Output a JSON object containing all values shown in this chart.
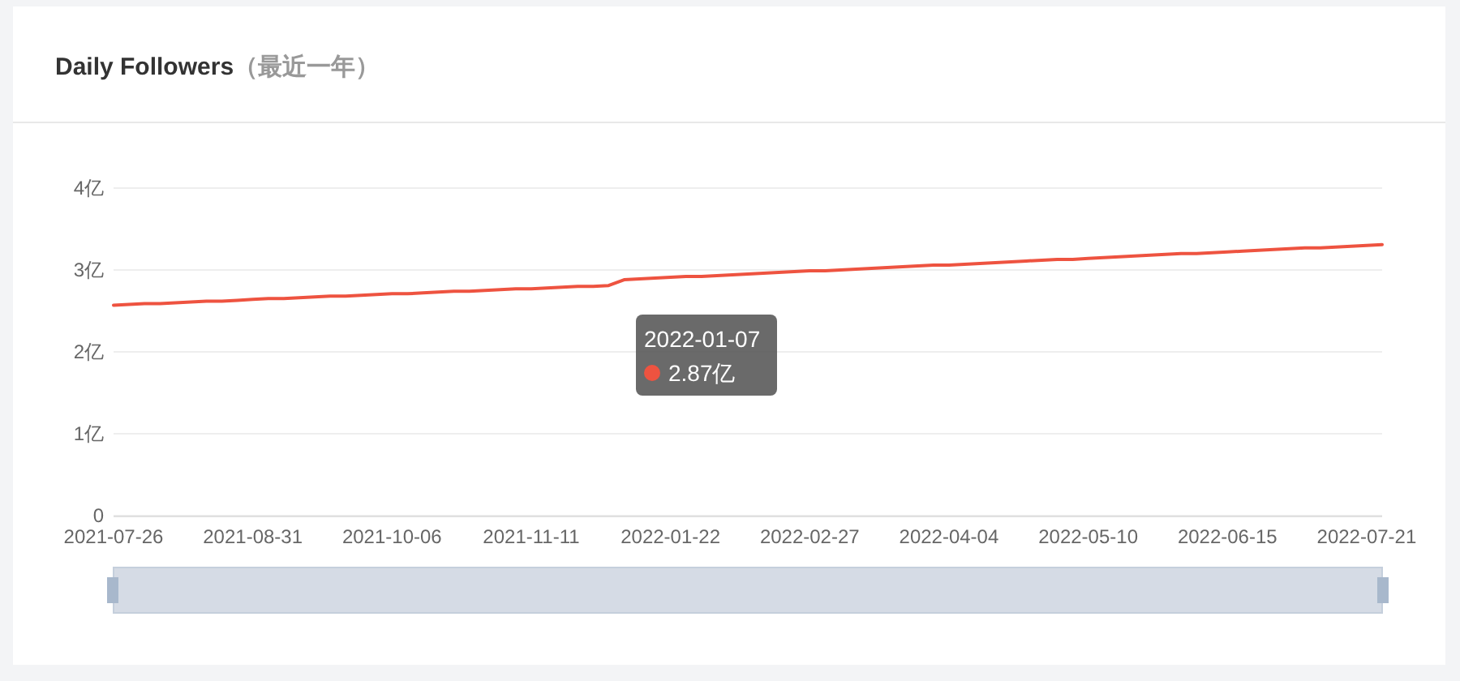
{
  "chart_data": {
    "type": "line",
    "title": "Daily Followers",
    "subtitle": "（最近一年）",
    "categories": [
      "2021-07-26",
      null,
      null,
      null,
      null,
      null,
      null,
      null,
      null,
      "2021-08-31",
      null,
      null,
      null,
      null,
      null,
      null,
      null,
      null,
      "2021-10-06",
      null,
      null,
      null,
      null,
      null,
      null,
      null,
      null,
      "2021-11-11",
      null,
      null,
      null,
      null,
      null,
      null,
      null,
      null,
      "2022-01-22",
      null,
      null,
      null,
      null,
      null,
      null,
      null,
      null,
      "2022-02-27",
      null,
      null,
      null,
      null,
      null,
      null,
      null,
      null,
      "2022-04-04",
      null,
      null,
      null,
      null,
      null,
      null,
      null,
      null,
      "2022-05-10",
      null,
      null,
      null,
      null,
      null,
      null,
      null,
      null,
      "2022-06-15",
      null,
      null,
      null,
      null,
      null,
      null,
      null,
      null,
      "2022-07-21",
      null
    ],
    "series": [
      {
        "color": "#ee5340",
        "values": [
          2.57,
          2.58,
          2.59,
          2.59,
          2.6,
          2.61,
          2.62,
          2.62,
          2.63,
          2.64,
          2.65,
          2.65,
          2.66,
          2.67,
          2.68,
          2.68,
          2.69,
          2.7,
          2.71,
          2.71,
          2.72,
          2.73,
          2.74,
          2.74,
          2.75,
          2.76,
          2.77,
          2.77,
          2.78,
          2.79,
          2.8,
          2.8,
          2.81,
          2.88,
          2.89,
          2.9,
          2.91,
          2.92,
          2.92,
          2.93,
          2.94,
          2.95,
          2.96,
          2.97,
          2.98,
          2.99,
          2.99,
          3.0,
          3.01,
          3.02,
          3.03,
          3.04,
          3.05,
          3.06,
          3.06,
          3.07,
          3.08,
          3.09,
          3.1,
          3.11,
          3.12,
          3.13,
          3.13,
          3.14,
          3.15,
          3.16,
          3.17,
          3.18,
          3.19,
          3.2,
          3.2,
          3.21,
          3.22,
          3.23,
          3.24,
          3.25,
          3.26,
          3.27,
          3.27,
          3.28,
          3.29,
          3.3,
          3.31
        ]
      }
    ],
    "ylim": [
      0,
      4
    ],
    "yticks": [
      0,
      {
        "value": 1,
        "label": "1亿"
      },
      {
        "value": 2,
        "label": "2亿"
      },
      {
        "value": 3,
        "label": "3亿"
      },
      {
        "value": 4,
        "label": "4亿"
      }
    ],
    "grid": "y",
    "marker": "none",
    "line_style": "solid",
    "annotations": [
      "2022-01-07",
      "2.87亿"
    ]
  }
}
